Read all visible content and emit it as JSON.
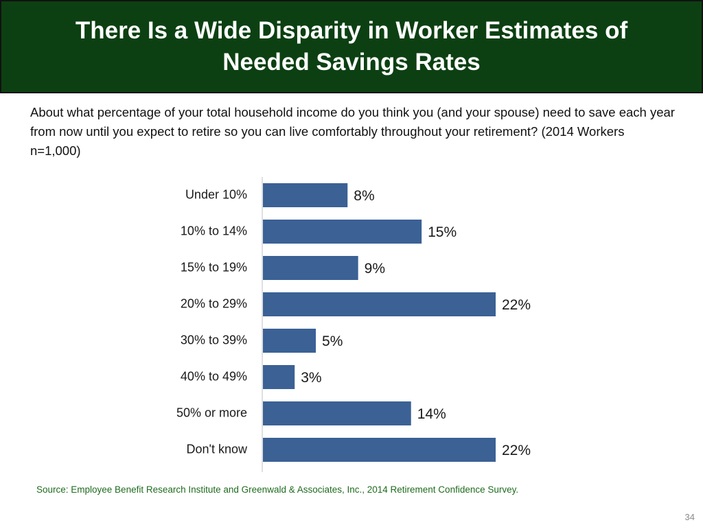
{
  "slide": {
    "title": "There Is a Wide Disparity in Worker Estimates of Needed Savings Rates",
    "question": "About what percentage of your total household income do you think you (and your spouse) need to save each year from now until you expect to retire so you can live comfortably throughout your retirement? (2014 Workers n=1,000)",
    "source": "Source:  Employee Benefit Research Institute and Greenwald & Associates, Inc., 2014 Retirement Confidence Survey.",
    "page_number": "34"
  },
  "colors": {
    "title_bg": "#0c4012",
    "bar": "#3b6195",
    "source_text": "#1e6b1e"
  },
  "chart_data": {
    "type": "bar",
    "orientation": "horizontal",
    "categories": [
      "Under 10%",
      "10% to 14%",
      "15% to 19%",
      "20% to 29%",
      "30% to 39%",
      "40% to 49%",
      "50% or more",
      "Don't know"
    ],
    "values": [
      8,
      15,
      9,
      22,
      5,
      3,
      14,
      22
    ],
    "data_labels": [
      "8%",
      "15%",
      "9%",
      "22%",
      "5%",
      "3%",
      "14%",
      "22%"
    ],
    "xlim": [
      0,
      25
    ],
    "title": "",
    "xlabel": "",
    "ylabel": "",
    "grid": false,
    "legend": "none"
  }
}
